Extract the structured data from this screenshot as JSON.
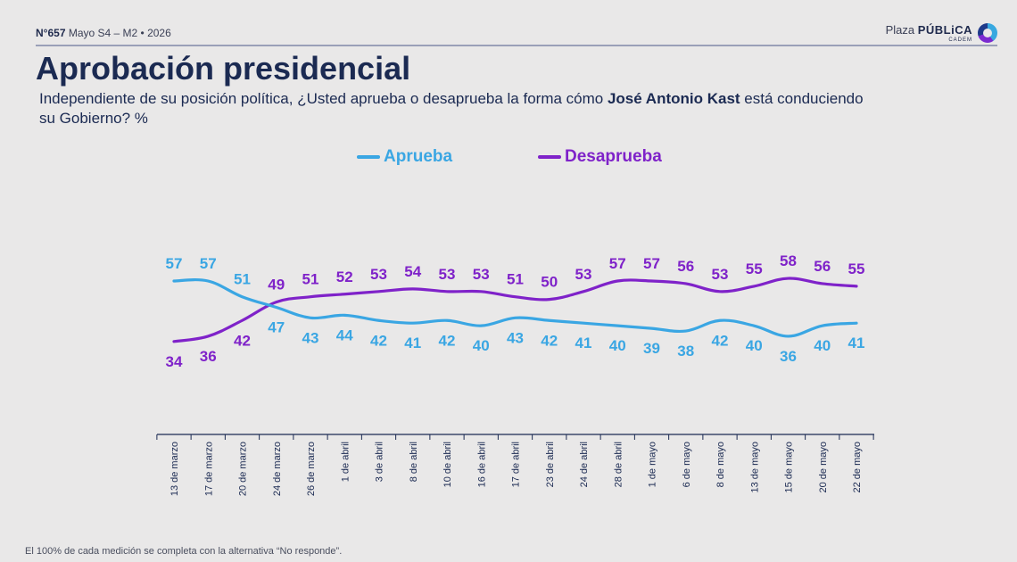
{
  "header": {
    "number": "N°657",
    "meta": "Mayo S4 – M2 • 2026",
    "brand_main_a": "Plaza ",
    "brand_main_b": "PÚBLiCA",
    "brand_sub": "CADEM"
  },
  "title": "Aprobación presidencial",
  "subtitle": {
    "part1": "Independiente de su posición política, ¿Usted aprueba o desaprueba la forma cómo ",
    "bold": "José Antonio Kast",
    "part2": " está conduciendo su Gobierno? %"
  },
  "footer": "El 100% de cada medición se completa con la alternativa “No responde”.",
  "colors": {
    "aprueba": "#3aa6e3",
    "desaprueba": "#7f22c9",
    "axis": "#1b2a52"
  },
  "chart_data": {
    "type": "line",
    "categories": [
      "13 de marzo",
      "17 de marzo",
      "20 de marzo",
      "24 de marzo",
      "26 de marzo",
      "1 de abril",
      "3 de abril",
      "8 de abril",
      "10 de abril",
      "16 de abril",
      "17 de abril",
      "23 de abril",
      "24 de abril",
      "28 de abril",
      "1 de mayo",
      "6 de mayo",
      "8 de mayo",
      "13 de mayo",
      "15 de mayo",
      "20 de mayo",
      "22 de mayo"
    ],
    "series": [
      {
        "name": "Aprueba",
        "values": [
          57,
          57,
          51,
          47,
          43,
          44,
          42,
          41,
          42,
          40,
          43,
          42,
          41,
          40,
          39,
          38,
          42,
          40,
          36,
          40,
          41
        ]
      },
      {
        "name": "Desaprueba",
        "values": [
          34,
          36,
          42,
          49,
          51,
          52,
          53,
          54,
          53,
          53,
          51,
          50,
          53,
          57,
          57,
          56,
          53,
          55,
          58,
          56,
          55
        ]
      }
    ],
    "legend_position": "top-center",
    "grid": false
  }
}
